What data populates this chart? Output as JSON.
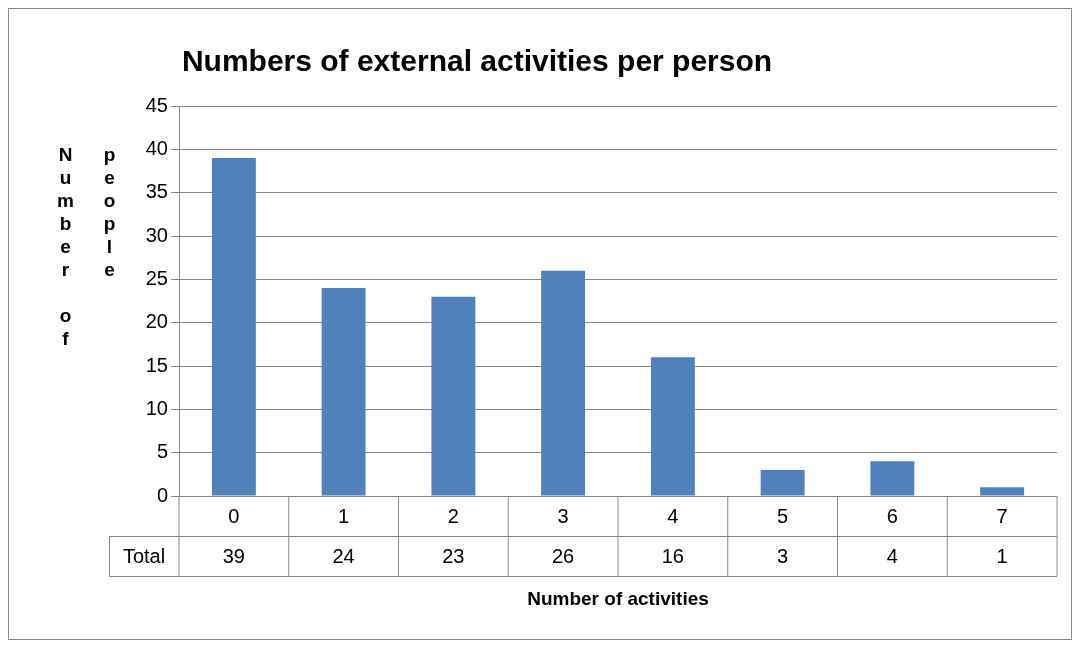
{
  "chart_data": {
    "type": "bar",
    "title": "Numbers of external activities per person",
    "xlabel": "Number of activities",
    "ylabel": "Number of people",
    "categories": [
      "0",
      "1",
      "2",
      "3",
      "4",
      "5",
      "6",
      "7"
    ],
    "series": [
      {
        "name": "Total",
        "color": "#4f81bd",
        "values": [
          39,
          24,
          23,
          26,
          16,
          3,
          4,
          1
        ]
      }
    ],
    "ylim": [
      0,
      45
    ],
    "yticks": [
      0,
      5,
      10,
      15,
      20,
      25,
      30,
      35,
      40,
      45
    ],
    "grid": "y",
    "legend": false,
    "data_labels": true
  }
}
